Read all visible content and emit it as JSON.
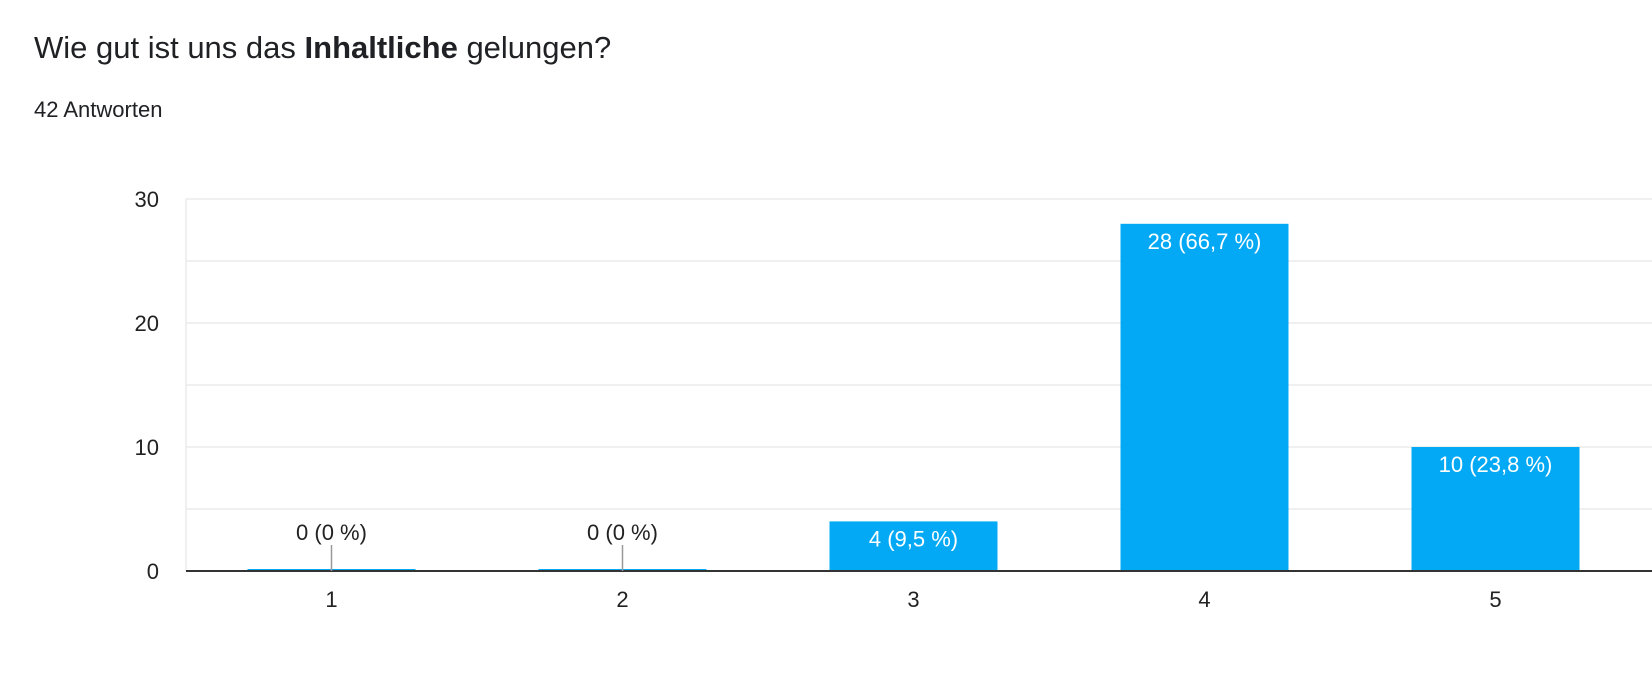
{
  "question": {
    "prefix": "Wie gut ist uns das ",
    "bold": "Inhaltliche",
    "suffix": " gelungen?"
  },
  "response_count": "42 Antworten",
  "colors": {
    "bar": "#03a9f4",
    "gridline": "#ebebeb",
    "axis": "#333333",
    "text": "#202124"
  },
  "chart_data": {
    "type": "bar",
    "categories": [
      "1",
      "2",
      "3",
      "4",
      "5"
    ],
    "values": [
      0,
      0,
      4,
      28,
      10
    ],
    "data_labels": [
      "0 (0 %)",
      "0 (0 %)",
      "4 (9,5 %)",
      "28 (66,7 %)",
      "10 (23,8 %)"
    ],
    "ylim": [
      0,
      30
    ],
    "yticks": [
      0,
      10,
      20,
      30
    ],
    "grid": true,
    "legend": "none"
  }
}
